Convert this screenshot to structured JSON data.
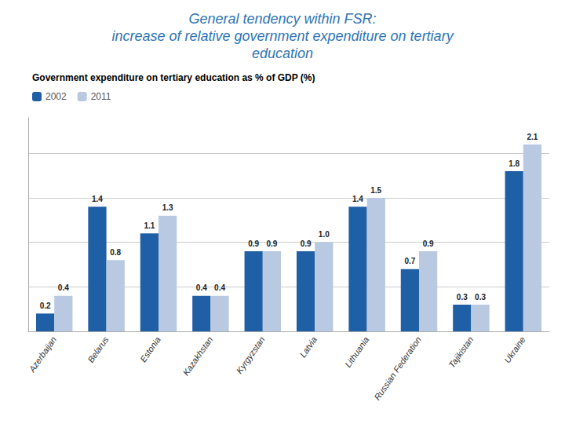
{
  "chart_data": {
    "type": "bar",
    "title": "General tendency within FSR:\nincrease of relative government expenditure on tertiary\neducation",
    "subtitle": "Government expenditure on tertiary education as % of GDP (%)",
    "categories": [
      "Azerbaijan",
      "Belarus",
      "Estonia",
      "Kazakhstan",
      "Kyrgyzstan",
      "Latvia",
      "Lithuania",
      "Russian Federation",
      "Tajikistan",
      "Ukraine"
    ],
    "series": [
      {
        "name": "2002",
        "color": "#1F5FA6",
        "values": [
          0.2,
          1.4,
          1.1,
          0.4,
          0.9,
          0.9,
          1.4,
          0.7,
          0.3,
          1.8
        ],
        "value_labels": [
          "0.2",
          "1.4",
          "1.1",
          "0.4",
          "0.9",
          "0.9",
          "1.4",
          "0.7",
          "0.3",
          "1.8"
        ]
      },
      {
        "name": "2011",
        "color": "#B8C9E1",
        "values": [
          0.4,
          0.8,
          1.3,
          0.4,
          0.9,
          1.0,
          1.5,
          0.9,
          0.3,
          2.1
        ],
        "value_labels": [
          "0.4",
          "0.8",
          "1.3",
          "0.4",
          "0.9",
          "1.0",
          "1.5",
          "0.9",
          "0.3",
          "2.1"
        ]
      }
    ],
    "ylim": [
      0,
      2.4
    ],
    "yticks": [
      0,
      0.5,
      1,
      1.5,
      2
    ],
    "grid": true,
    "legend": "upper left",
    "data_labels": true,
    "tick_labels": "x"
  }
}
